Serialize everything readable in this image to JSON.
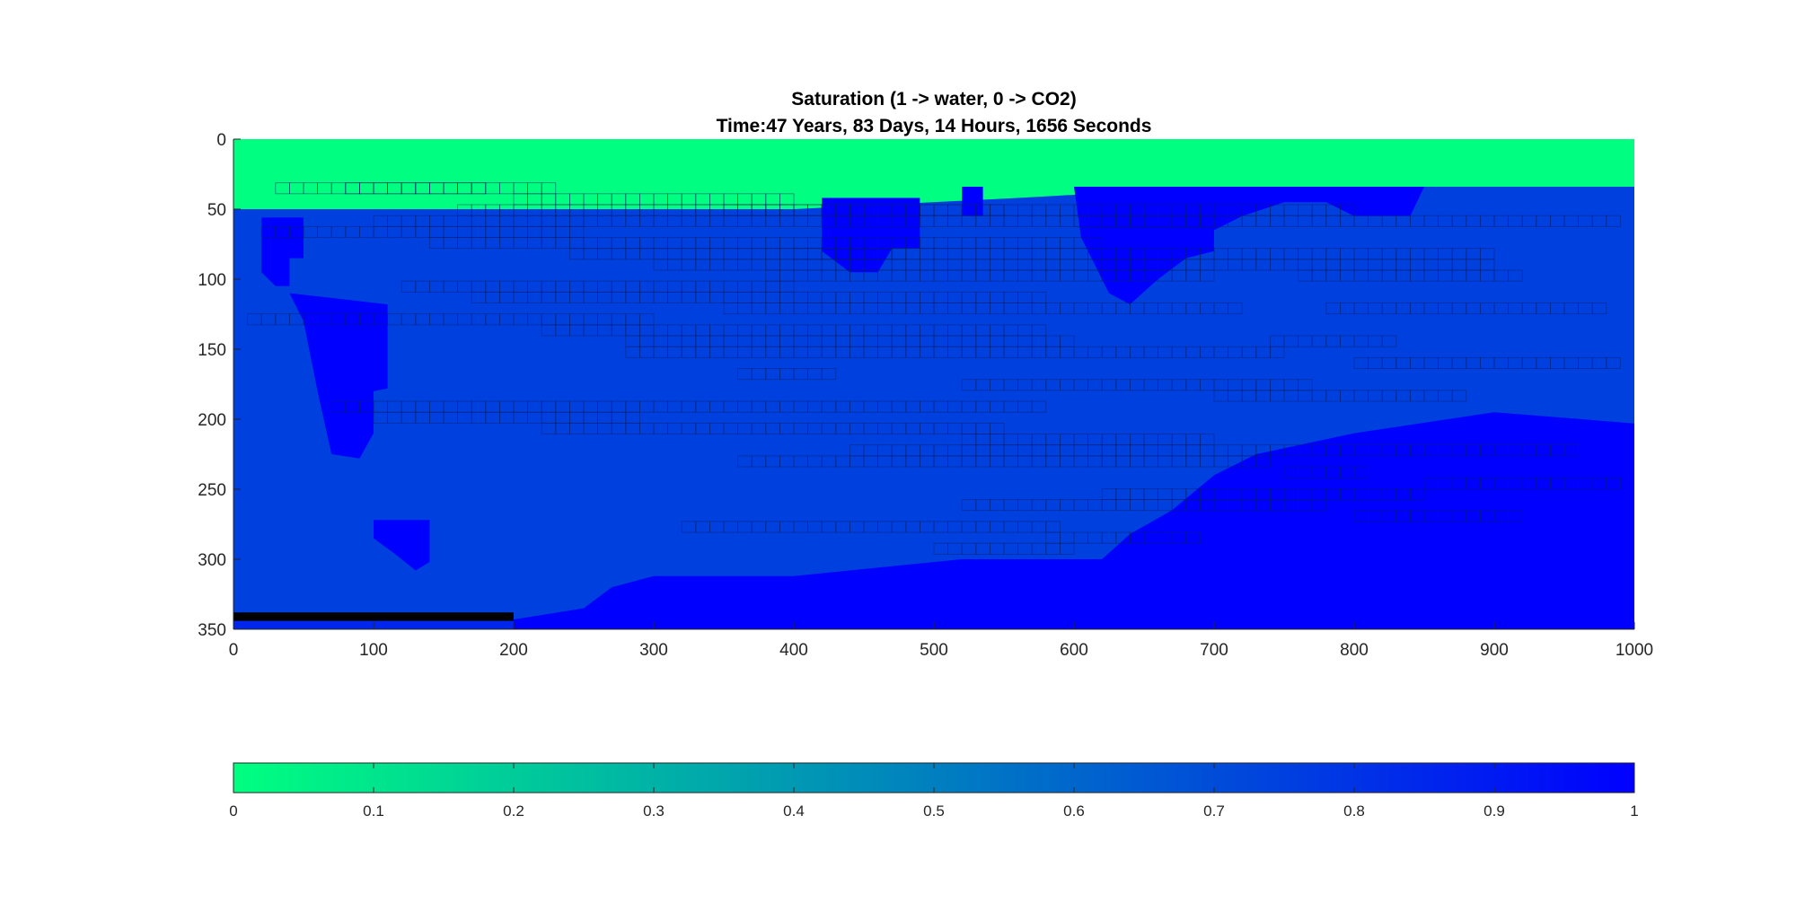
{
  "chart_data": {
    "type": "heatmap",
    "title": "Saturation (1 -> water, 0 -> CO2)",
    "subtitle": "Time:47 Years, 83 Days, 14 Hours, 1656 Seconds",
    "xlabel": "",
    "ylabel": "",
    "xlim": [
      0,
      1000
    ],
    "ylim": [
      0,
      350
    ],
    "y_reversed": true,
    "x_ticks": [
      "0",
      "100",
      "200",
      "300",
      "400",
      "500",
      "600",
      "700",
      "800",
      "900",
      "1000"
    ],
    "y_ticks": [
      "0",
      "50",
      "100",
      "150",
      "200",
      "250",
      "300",
      "350"
    ],
    "colorbar": {
      "orientation": "horizontal",
      "location": "below",
      "range": [
        0,
        1
      ],
      "ticks": [
        "0",
        "0.1",
        "0.2",
        "0.3",
        "0.4",
        "0.5",
        "0.6",
        "0.7",
        "0.8",
        "0.9",
        "1"
      ],
      "color_min": "#00ff80",
      "color_max": "#0000ff"
    },
    "background_saturation": 0.75,
    "saturation_regions": [
      {
        "region": "co2-cap-left",
        "saturation": 0.0,
        "points": [
          [
            0,
            0
          ],
          [
            0,
            50
          ],
          [
            400,
            50
          ],
          [
            560,
            42
          ],
          [
            700,
            34
          ],
          [
            1000,
            34
          ],
          [
            1000,
            0
          ]
        ]
      },
      {
        "region": "left-column-upper",
        "saturation": 1.0,
        "points": [
          [
            20,
            56
          ],
          [
            50,
            56
          ],
          [
            50,
            85
          ],
          [
            40,
            85
          ],
          [
            40,
            105
          ],
          [
            30,
            105
          ],
          [
            20,
            95
          ]
        ]
      },
      {
        "region": "left-plume",
        "saturation": 1.0,
        "points": [
          [
            40,
            110
          ],
          [
            110,
            118
          ],
          [
            110,
            178
          ],
          [
            100,
            180
          ],
          [
            100,
            210
          ],
          [
            90,
            228
          ],
          [
            70,
            225
          ],
          [
            60,
            180
          ],
          [
            50,
            130
          ]
        ]
      },
      {
        "region": "plume-420-500",
        "saturation": 1.0,
        "points": [
          [
            420,
            42
          ],
          [
            490,
            42
          ],
          [
            490,
            78
          ],
          [
            470,
            78
          ],
          [
            460,
            95
          ],
          [
            440,
            95
          ],
          [
            420,
            80
          ]
        ]
      },
      {
        "region": "plume-600-700",
        "saturation": 1.0,
        "points": [
          [
            600,
            34
          ],
          [
            700,
            34
          ],
          [
            700,
            80
          ],
          [
            680,
            85
          ],
          [
            660,
            100
          ],
          [
            640,
            118
          ],
          [
            625,
            110
          ],
          [
            615,
            90
          ],
          [
            605,
            70
          ]
        ]
      },
      {
        "region": "plume-700-850",
        "saturation": 1.0,
        "points": [
          [
            700,
            34
          ],
          [
            850,
            34
          ],
          [
            840,
            55
          ],
          [
            800,
            55
          ],
          [
            780,
            45
          ],
          [
            750,
            45
          ],
          [
            720,
            55
          ],
          [
            700,
            65
          ]
        ]
      },
      {
        "region": "plume-525",
        "saturation": 1.0,
        "points": [
          [
            520,
            34
          ],
          [
            535,
            34
          ],
          [
            535,
            55
          ],
          [
            520,
            55
          ]
        ]
      },
      {
        "region": "lower-left-lens",
        "saturation": 1.0,
        "points": [
          [
            100,
            272
          ],
          [
            140,
            272
          ],
          [
            140,
            302
          ],
          [
            130,
            308
          ],
          [
            115,
            296
          ],
          [
            100,
            285
          ]
        ]
      },
      {
        "region": "lower-right-region",
        "saturation": 1.0,
        "points": [
          [
            1000,
            203
          ],
          [
            900,
            195
          ],
          [
            800,
            210
          ],
          [
            730,
            225
          ],
          [
            700,
            240
          ],
          [
            670,
            265
          ],
          [
            640,
            282
          ],
          [
            620,
            300
          ],
          [
            520,
            300
          ],
          [
            400,
            312
          ],
          [
            300,
            312
          ],
          [
            270,
            320
          ],
          [
            250,
            335
          ],
          [
            200,
            343
          ],
          [
            200,
            350
          ],
          [
            1000,
            350
          ]
        ]
      },
      {
        "region": "bottom-transition",
        "saturation": 0.85,
        "points": [
          [
            0,
            343
          ],
          [
            200,
            343
          ],
          [
            200,
            350
          ],
          [
            0,
            350
          ]
        ]
      }
    ],
    "black_bar": {
      "x_start": 0,
      "x_end": 200,
      "y": 338,
      "thickness": 6
    }
  }
}
